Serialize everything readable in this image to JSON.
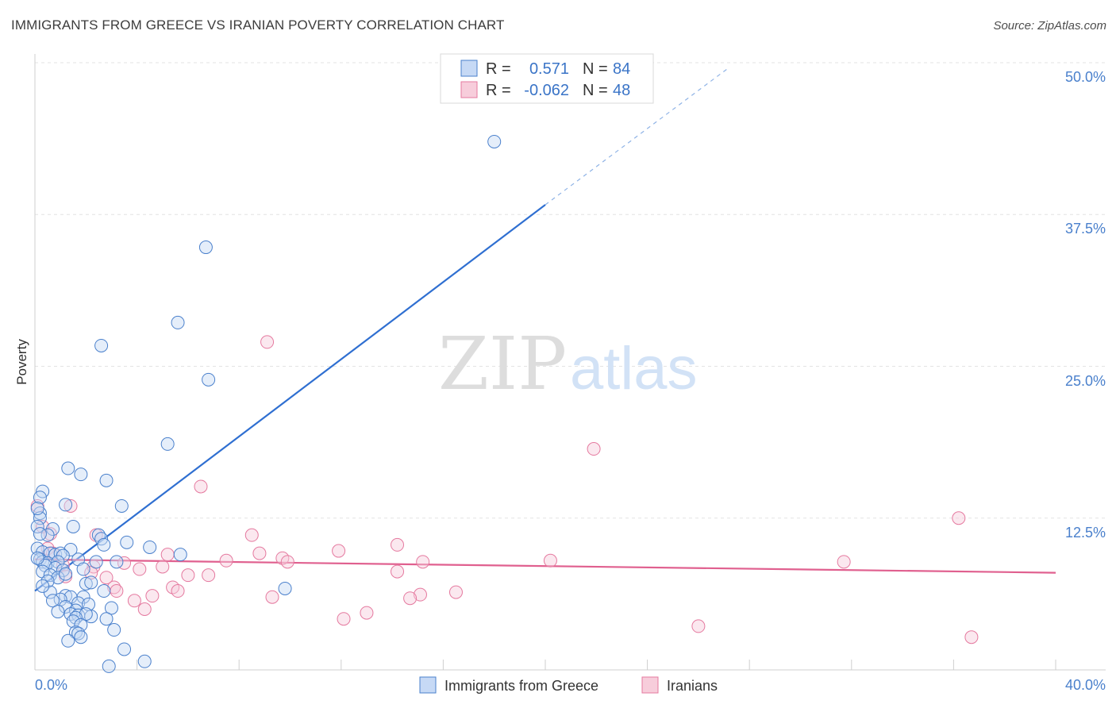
{
  "title": "IMMIGRANTS FROM GREECE VS IRANIAN POVERTY CORRELATION CHART",
  "source": "Source: ZipAtlas.com",
  "watermark": {
    "zip": "ZIP",
    "atlas": "atlas"
  },
  "chart_data": {
    "type": "scatter",
    "title": "IMMIGRANTS FROM GREECE VS IRANIAN POVERTY CORRELATION CHART",
    "xlabel": "",
    "ylabel": "Poverty",
    "xlim": [
      0,
      40
    ],
    "ylim": [
      0,
      50
    ],
    "x_tick_labels": [
      "0.0%",
      "40.0%"
    ],
    "y_ticks": [
      12.5,
      25.0,
      37.5,
      50.0
    ],
    "y_tick_labels": [
      "12.5%",
      "25.0%",
      "37.5%",
      "50.0%"
    ],
    "grid": true,
    "colors": {
      "greece": "#4a80cc",
      "greece_fill": "#c6d9f5",
      "iranians": "#e5799f",
      "iranians_fill": "#f7cddb"
    },
    "legend": [
      {
        "name": "Immigrants from Greece",
        "r_label": "R =",
        "r_value": "0.571",
        "n_label": "N =",
        "n_value": "84"
      },
      {
        "name": "Iranians",
        "r_label": "R =",
        "r_value": "-0.062",
        "n_label": "N =",
        "n_value": "48"
      }
    ],
    "series": [
      {
        "name": "Immigrants from Greece",
        "trend": {
          "x0": 0.0,
          "y0": 6.5,
          "x1": 20.0,
          "y1": 38.3,
          "dash_to_x": 27.2,
          "dash_to_y": 49.6
        },
        "points": [
          [
            18.0,
            43.5
          ],
          [
            6.7,
            34.8
          ],
          [
            5.6,
            28.6
          ],
          [
            2.6,
            26.7
          ],
          [
            6.8,
            23.9
          ],
          [
            5.2,
            18.6
          ],
          [
            1.3,
            16.6
          ],
          [
            1.8,
            16.1
          ],
          [
            2.8,
            15.6
          ],
          [
            0.3,
            14.7
          ],
          [
            0.2,
            14.2
          ],
          [
            3.4,
            13.5
          ],
          [
            1.2,
            13.6
          ],
          [
            0.2,
            12.9
          ],
          [
            0.2,
            12.5
          ],
          [
            0.1,
            11.8
          ],
          [
            1.5,
            11.8
          ],
          [
            0.7,
            11.6
          ],
          [
            0.5,
            11.1
          ],
          [
            2.5,
            11.1
          ],
          [
            2.6,
            10.8
          ],
          [
            3.6,
            10.5
          ],
          [
            2.7,
            10.3
          ],
          [
            4.5,
            10.1
          ],
          [
            0.1,
            10.0
          ],
          [
            1.4,
            9.9
          ],
          [
            0.3,
            9.7
          ],
          [
            0.6,
            9.6
          ],
          [
            0.8,
            9.5
          ],
          [
            1.0,
            9.6
          ],
          [
            5.7,
            9.5
          ],
          [
            0.2,
            9.1
          ],
          [
            1.1,
            9.4
          ],
          [
            0.3,
            8.9
          ],
          [
            0.5,
            8.8
          ],
          [
            0.9,
            8.9
          ],
          [
            3.2,
            8.9
          ],
          [
            1.7,
            9.1
          ],
          [
            2.4,
            8.9
          ],
          [
            0.4,
            8.6
          ],
          [
            0.8,
            8.4
          ],
          [
            1.9,
            8.3
          ],
          [
            0.3,
            8.1
          ],
          [
            1.1,
            8.2
          ],
          [
            0.6,
            7.8
          ],
          [
            0.9,
            7.6
          ],
          [
            1.2,
            7.9
          ],
          [
            2.0,
            7.1
          ],
          [
            0.5,
            7.3
          ],
          [
            2.2,
            7.2
          ],
          [
            9.8,
            6.7
          ],
          [
            2.7,
            6.5
          ],
          [
            0.6,
            6.4
          ],
          [
            1.2,
            6.1
          ],
          [
            1.9,
            6.0
          ],
          [
            1.4,
            6.0
          ],
          [
            1.0,
            5.8
          ],
          [
            0.7,
            5.7
          ],
          [
            1.7,
            5.5
          ],
          [
            2.1,
            5.4
          ],
          [
            1.2,
            5.2
          ],
          [
            3.0,
            5.1
          ],
          [
            1.6,
            4.9
          ],
          [
            0.9,
            4.8
          ],
          [
            1.4,
            4.6
          ],
          [
            1.7,
            4.5
          ],
          [
            2.2,
            4.4
          ],
          [
            2.0,
            4.6
          ],
          [
            2.8,
            4.2
          ],
          [
            1.6,
            4.3
          ],
          [
            1.5,
            4.0
          ],
          [
            1.8,
            3.7
          ],
          [
            3.1,
            3.3
          ],
          [
            1.6,
            3.1
          ],
          [
            1.7,
            3.0
          ],
          [
            1.8,
            2.7
          ],
          [
            1.3,
            2.4
          ],
          [
            3.5,
            1.7
          ],
          [
            4.3,
            0.7
          ],
          [
            2.9,
            0.3
          ],
          [
            0.1,
            13.3
          ],
          [
            0.1,
            9.2
          ],
          [
            0.3,
            6.9
          ],
          [
            0.2,
            11.2
          ]
        ]
      },
      {
        "name": "Iranians",
        "trend": {
          "x0": 0.0,
          "y0": 9.1,
          "x1": 40.0,
          "y1": 8.0
        },
        "points": [
          [
            0.1,
            13.5
          ],
          [
            1.4,
            13.5
          ],
          [
            0.3,
            11.8
          ],
          [
            0.6,
            11.2
          ],
          [
            2.4,
            11.1
          ],
          [
            6.5,
            15.1
          ],
          [
            9.1,
            27.0
          ],
          [
            21.9,
            18.2
          ],
          [
            36.2,
            12.5
          ],
          [
            8.5,
            11.1
          ],
          [
            14.2,
            10.3
          ],
          [
            0.5,
            10.0
          ],
          [
            0.7,
            9.6
          ],
          [
            11.9,
            9.8
          ],
          [
            5.2,
            9.5
          ],
          [
            8.8,
            9.6
          ],
          [
            9.7,
            9.2
          ],
          [
            9.9,
            8.9
          ],
          [
            7.5,
            9.0
          ],
          [
            20.2,
            9.0
          ],
          [
            31.7,
            8.9
          ],
          [
            15.2,
            8.9
          ],
          [
            3.5,
            8.8
          ],
          [
            5.0,
            8.5
          ],
          [
            1.1,
            8.6
          ],
          [
            2.3,
            8.5
          ],
          [
            4.1,
            8.3
          ],
          [
            14.2,
            8.1
          ],
          [
            2.2,
            8.0
          ],
          [
            6.0,
            7.8
          ],
          [
            6.8,
            7.8
          ],
          [
            1.2,
            7.7
          ],
          [
            2.8,
            7.6
          ],
          [
            3.1,
            6.8
          ],
          [
            5.4,
            6.8
          ],
          [
            5.6,
            6.5
          ],
          [
            3.2,
            6.5
          ],
          [
            16.5,
            6.4
          ],
          [
            15.1,
            6.2
          ],
          [
            4.6,
            6.1
          ],
          [
            9.3,
            6.0
          ],
          [
            14.7,
            5.9
          ],
          [
            3.9,
            5.7
          ],
          [
            4.3,
            5.0
          ],
          [
            13.0,
            4.7
          ],
          [
            12.1,
            4.2
          ],
          [
            26.0,
            3.6
          ],
          [
            36.7,
            2.7
          ]
        ]
      }
    ]
  }
}
